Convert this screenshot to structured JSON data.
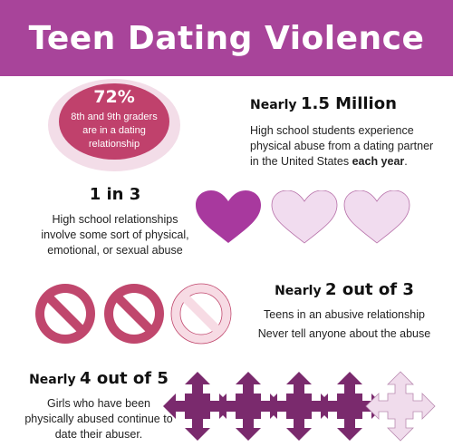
{
  "title": "Teen Dating Violence",
  "stat1": {
    "value": "72%",
    "text": "8th and 9th graders are in a dating relationship"
  },
  "stat2": {
    "lead": "Nearly",
    "value": "1.5 Million",
    "text_pre": "High school students experience physical abuse from a dating partner in the United States",
    "text_bold": "each year",
    "text_post": "."
  },
  "stat3": {
    "value": "1 in 3",
    "text": "High school relationships involve some sort of physical, emotional, or sexual abuse"
  },
  "stat4": {
    "lead": "Nearly",
    "value": "2 out of 3",
    "line1": "Teens in an abusive relationship",
    "line2": "Never tell anyone about the abuse"
  },
  "stat5": {
    "lead": "Nearly",
    "value": "4 out of 5",
    "text": "Girls who have been physically abused continue to date their abuser."
  },
  "icons": {
    "hearts": "heart-icon",
    "forbidden": "no-symbol-icon",
    "arrows": "four-way-arrow-icon"
  },
  "colors": {
    "banner": "#a8449a",
    "ellipse_outer": "#f3dde8",
    "ellipse_inner": "#c0416c",
    "heart_dark": "#a8399e",
    "heart_light": "#f1dcef",
    "forbid_dark": "#c0476d",
    "forbid_light": "#f7dbe4",
    "arrow_dark": "#7a2a6d",
    "arrow_light": "#f0dcec"
  }
}
